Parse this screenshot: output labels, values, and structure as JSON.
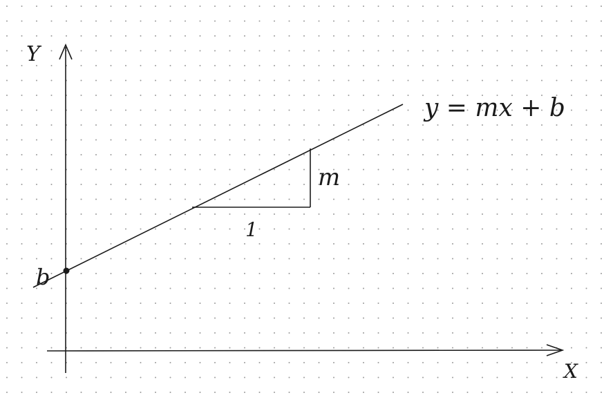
{
  "paper": {
    "background": "#ffffff",
    "dot_color": "#9a9a9a"
  },
  "ink_color": "#1a1a1a",
  "labels": {
    "y_axis": "Y",
    "x_axis": "X",
    "equation": "y = mx + b",
    "intercept": "b",
    "run": "1",
    "rise": "m"
  }
}
